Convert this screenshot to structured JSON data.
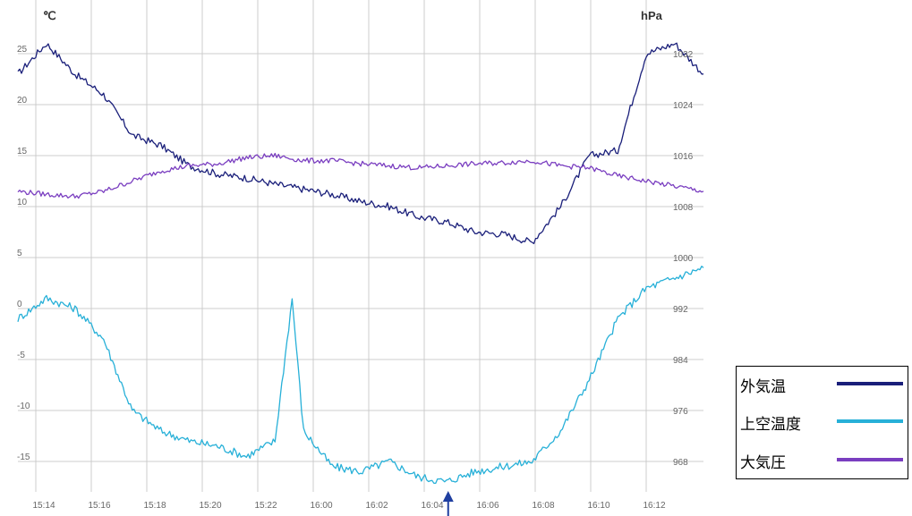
{
  "chart_data": {
    "type": "line",
    "left_unit": "℃",
    "right_unit": "hPa",
    "x_ticks": [
      "15:14",
      "15:16",
      "15:18",
      "15:20",
      "15:22",
      "16:00",
      "16:02",
      "16:04",
      "16:06",
      "16:08",
      "16:10",
      "16:12"
    ],
    "y_left": {
      "ticks": [
        "25",
        "20",
        "15",
        "10",
        "5",
        "0",
        "-5",
        "-10",
        "-15"
      ],
      "range": [
        -18,
        28
      ]
    },
    "y_right": {
      "ticks": [
        "1032",
        "1024",
        "1016",
        "1008",
        "1000",
        "992",
        "984",
        "976",
        "968"
      ],
      "range": [
        964,
        1038
      ]
    },
    "grid": true,
    "series": [
      {
        "name": "外気温",
        "color": "#1a1f7a",
        "axis": "left",
        "x": [
          0,
          0.5,
          1,
          1.5,
          2,
          2.5,
          3,
          3.5,
          4,
          4.5,
          5,
          5.5,
          6,
          6.5,
          7,
          7.5,
          8,
          8.5,
          9,
          9.5,
          10,
          10.5,
          11,
          11.5,
          12
        ],
        "y": [
          23,
          26,
          23,
          21,
          17,
          16,
          14,
          13.2,
          12.8,
          12.2,
          11.7,
          11.2,
          10.5,
          10,
          9,
          8.5,
          7.5,
          7.3,
          6.5,
          10,
          15,
          15.5,
          25,
          26,
          23
        ]
      },
      {
        "name": "上空温度",
        "color": "#27b0d8",
        "axis": "left",
        "x": [
          0,
          0.5,
          1,
          1.5,
          2,
          2.5,
          3,
          3.5,
          4,
          4.5,
          4.8,
          5,
          5.5,
          6,
          6.5,
          7,
          7.5,
          8,
          8.5,
          9,
          9.5,
          10,
          10.5,
          11,
          11.5,
          12
        ],
        "y": [
          -1,
          1,
          0,
          -3,
          -10,
          -12,
          -13,
          -13.5,
          -14.5,
          -13,
          1,
          -12,
          -15.5,
          -16,
          -15,
          -16.5,
          -17,
          -16,
          -15.5,
          -15,
          -12,
          -7,
          -1,
          2,
          3,
          4
        ]
      },
      {
        "name": "大気圧",
        "color": "#7a3ec0",
        "axis": "left",
        "x": [
          0,
          0.5,
          1,
          1.5,
          2,
          2.5,
          3,
          3.5,
          4,
          4.5,
          5,
          5.5,
          6,
          6.5,
          7,
          7.5,
          8,
          8.5,
          9,
          9.5,
          10,
          10.5,
          11,
          11.5,
          12
        ],
        "y": [
          11.5,
          11.2,
          11,
          11.5,
          12.5,
          13.5,
          14,
          14.2,
          14.8,
          15,
          14.5,
          14.5,
          14.2,
          14,
          13.8,
          14,
          14.2,
          14.3,
          14.5,
          14,
          13.8,
          13,
          12.5,
          12,
          11.5
        ]
      }
    ],
    "annotation": {
      "type": "arrow",
      "x_category": 7.5,
      "color": "#1f3fa0"
    }
  },
  "legend": {
    "items": [
      {
        "label": "外気温",
        "color": "#1a1f7a"
      },
      {
        "label": "上空温度",
        "color": "#27b0d8"
      },
      {
        "label": "大気圧",
        "color": "#7a3ec0"
      }
    ]
  }
}
